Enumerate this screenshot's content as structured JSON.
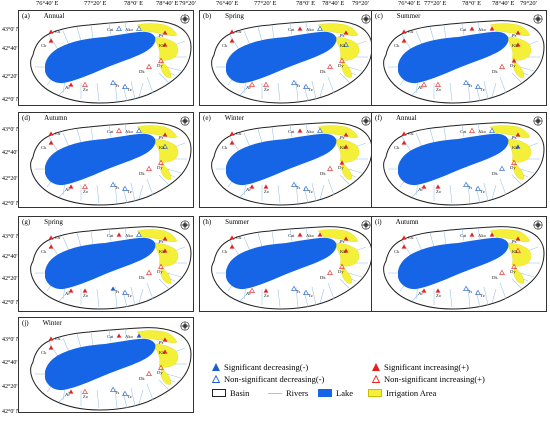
{
  "top_axis": {
    "ticks": [
      "76°40' E",
      "77°20' E",
      "78°0' E",
      "78°40' E",
      "79°20'"
    ]
  },
  "lat_ticks": [
    "43°0' N",
    "42°40' N",
    "42°20' N",
    "42°0' N"
  ],
  "panels": [
    {
      "letter": "(a)",
      "season": "Annual"
    },
    {
      "letter": "(b)",
      "season": "Spring"
    },
    {
      "letter": "(c)",
      "season": "Summer"
    },
    {
      "letter": "(d)",
      "season": "Autumn"
    },
    {
      "letter": "(e)",
      "season": "Winter"
    },
    {
      "letter": "(f)",
      "season": "Annual"
    },
    {
      "letter": "(g)",
      "season": "Spring"
    },
    {
      "letter": "(h)",
      "season": "Summer"
    },
    {
      "letter": "(i)",
      "season": "Autumn"
    },
    {
      "letter": "(j)",
      "season": "Winter"
    }
  ],
  "station_labels": [
    "Ck",
    "Cu",
    "Cai",
    "Ako",
    "Pz",
    "Kk",
    "Dk",
    "Dy",
    "Ar",
    "Zo",
    "Ts",
    "Tz"
  ],
  "legend": {
    "sig_dec": "Significant decreasing(-)",
    "sig_inc": "Significant increasing(+)",
    "nonsig_dec": "Non-significant decreasing(-)",
    "nonsig_inc": "Non-significant increasing(+)",
    "basin": "Basin",
    "rivers": "Rivers",
    "lake": "Lake",
    "irrigation": "Irrigation Area"
  },
  "colors": {
    "lake": "#1565e6",
    "irrigation": "#f4f03a",
    "river": "#9ec7ea",
    "sig_increase": "#e62020",
    "sig_decrease": "#1f5fc9",
    "basin_border": "#222222"
  }
}
